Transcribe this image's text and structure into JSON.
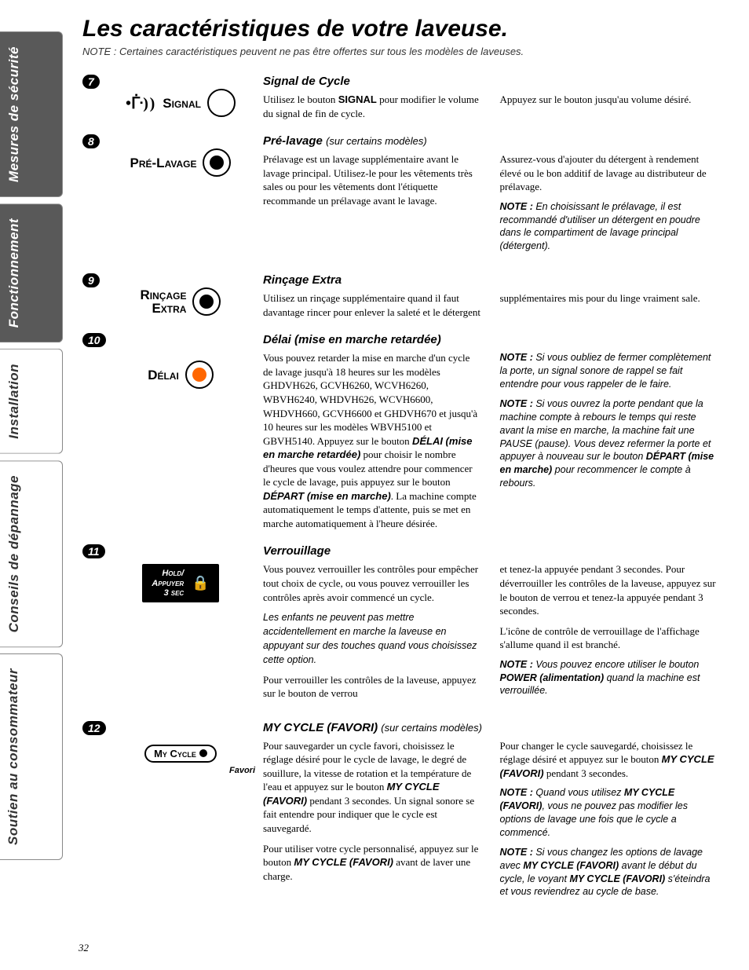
{
  "page_number": "32",
  "title": "Les caractéristiques de votre laveuse.",
  "subtitle": "NOTE : Certaines caractéristiques peuvent ne pas être offertes sur tous les modèles de laveuses.",
  "tabs": [
    {
      "label": "Mesures de sécurité",
      "style": "dark"
    },
    {
      "label": "Fonctionnement",
      "style": "dark"
    },
    {
      "label": "Installation",
      "style": "light"
    },
    {
      "label": "Conseils de dépannage",
      "style": "light"
    },
    {
      "label": "Soutien au consommateur",
      "style": "light"
    }
  ],
  "sections": [
    {
      "num": "7",
      "icon": {
        "type": "signal",
        "label": "Signal"
      },
      "title": "Signal de Cycle",
      "col1": "Utilisez le bouton <b>SIGNAL</b> pour modifier le volume du signal de fin de cycle.",
      "col2": "Appuyez sur le bouton jusqu'au volume désiré."
    },
    {
      "num": "8",
      "icon": {
        "type": "knob-filled",
        "label": "Pré-Lavage"
      },
      "title": "Pré-lavage",
      "title_paren": "(sur certains modèles)",
      "col1": "Prélavage est un lavage supplémentaire avant le lavage principal. Utilisez-le pour les vêtements très sales ou pour les vêtements dont l'étiquette recommande un prélavage avant le lavage.",
      "col2": "Assurez-vous d'ajouter du détergent à rendement élevé ou le bon additif de lavage au distributeur de prélavage.",
      "col2_note": "En choisissant le prélavage, il est recommandé d'utiliser un détergent en poudre dans le compartiment de lavage principal (détergent)."
    },
    {
      "num": "9",
      "icon": {
        "type": "knob-filled",
        "label": "Rinçage Extra",
        "twoline": true
      },
      "title": "Rinçage Extra",
      "col1": "Utilisez un rinçage supplémentaire quand il faut davantage rincer pour enlever la saleté et le détergent",
      "col2": "supplémentaires mis pour du linge vraiment sale."
    },
    {
      "num": "10",
      "icon": {
        "type": "knob-orange",
        "label": "Délai"
      },
      "title": "Délai (mise en marche retardée)",
      "col1_html": "Vous pouvez retarder la mise en marche d'un cycle de lavage jusqu'à 18 heures sur les modèles GHDVH626, GCVH6260, WCVH6260, WBVH6240, WHDVH626, WCVH6600, WHDVH660, GCVH6600 et GHDVH670 et jusqu'à 10 heures sur les modèles WBVH5100 et GBVH5140. Appuyez sur le bouton <bi>DÉLAI (mise en marche retardée)</bi> pour choisir le nombre d'heures que vous voulez attendre pour commencer le cycle de lavage, puis appuyez sur le bouton <bi>DÉPART (mise en marche)</bi>. La machine compte automatiquement le temps d'attente, puis se met en marche automatiquement à l'heure désirée.",
      "col2_notes": [
        "Si vous oubliez de fermer complètement la porte, un signal sonore de rappel se fait entendre pour vous rappeler de le faire.",
        "Si vous ouvrez la porte pendant que la machine compte à rebours le temps qui reste avant la mise en marche, la machine fait une PAUSE (pause). Vous devez refermer la porte et appuyer à nouveau sur le bouton <bi>DÉPART (mise en marche)</bi> pour recommencer le compte à rebours."
      ]
    },
    {
      "num": "11",
      "icon": {
        "type": "lock",
        "label": "Hold/ Appuyer 3 sec"
      },
      "title": "Verrouillage",
      "col1_paras": [
        "Vous pouvez verrouiller les contrôles pour empêcher tout choix de cycle, ou vous pouvez verrouiller les contrôles après avoir commencé un cycle.",
        "<i>Les enfants ne peuvent pas mettre accidentellement en marche la laveuse en appuyant sur des touches quand vous choisissez cette option.</i>",
        "Pour verrouiller les contrôles de la laveuse, appuyez sur le bouton de verrou"
      ],
      "col2_paras": [
        "et tenez-la appuyée pendant 3 secondes. Pour déverrouiller les contrôles de la laveuse, appuyez sur le bouton de verrou et tenez-la appuyée pendant 3 secondes.",
        "L'icône de contrôle de verrouillage de l'affichage s'allume quand il est branché."
      ],
      "col2_note": "Vous pouvez encore utiliser le bouton <bi>POWER (alimentation)</bi> quand la machine est verrouillée."
    },
    {
      "num": "12",
      "icon": {
        "type": "mycycle",
        "label": "My Cycle",
        "sublabel": "Favori"
      },
      "title": "MY CYCLE (FAVORI)",
      "title_paren": "(sur certains modèles)",
      "col1_paras_html": [
        "Pour sauvegarder un cycle favori, choisissez le réglage désiré pour le cycle de lavage, le degré de souillure, la vitesse de rotation et la température de l'eau et appuyez sur le bouton <bi>MY CYCLE (FAVORI)</bi> pendant 3 secondes. Un signal sonore se fait entendre pour indiquer que le cycle est sauvegardé.",
        "Pour utiliser votre cycle personnalisé, appuyez sur le bouton <bi>MY CYCLE (FAVORI)</bi> avant de laver une charge."
      ],
      "col2_paras_html": [
        "Pour changer le cycle sauvegardé, choisissez le réglage désiré et appuyez sur le bouton <bi>MY CYCLE (FAVORI)</bi> pendant 3 secondes."
      ],
      "col2_notes_html": [
        "Quand vous utilisez <bi>MY CYCLE (FAVORI)</bi>, vous ne pouvez pas modifier les options de lavage une fois que le cycle a commencé.",
        "Si vous changez les options de lavage avec <bi>MY CYCLE (FAVORI)</bi> avant le début du cycle, le voyant <bi>MY CYCLE (FAVORI)</bi> s'éteindra et vous reviendrez au cycle de base."
      ]
    }
  ],
  "colors": {
    "tab_dark_bg": "#595959",
    "tab_dark_fg": "#ffffff",
    "tab_light_bg": "#ffffff",
    "tab_light_fg": "#333333",
    "accent_orange": "#ff6600"
  },
  "typography": {
    "title_fontsize": 30,
    "section_title_fontsize": 15,
    "body_fontsize": 13,
    "tab_fontsize": 17
  }
}
